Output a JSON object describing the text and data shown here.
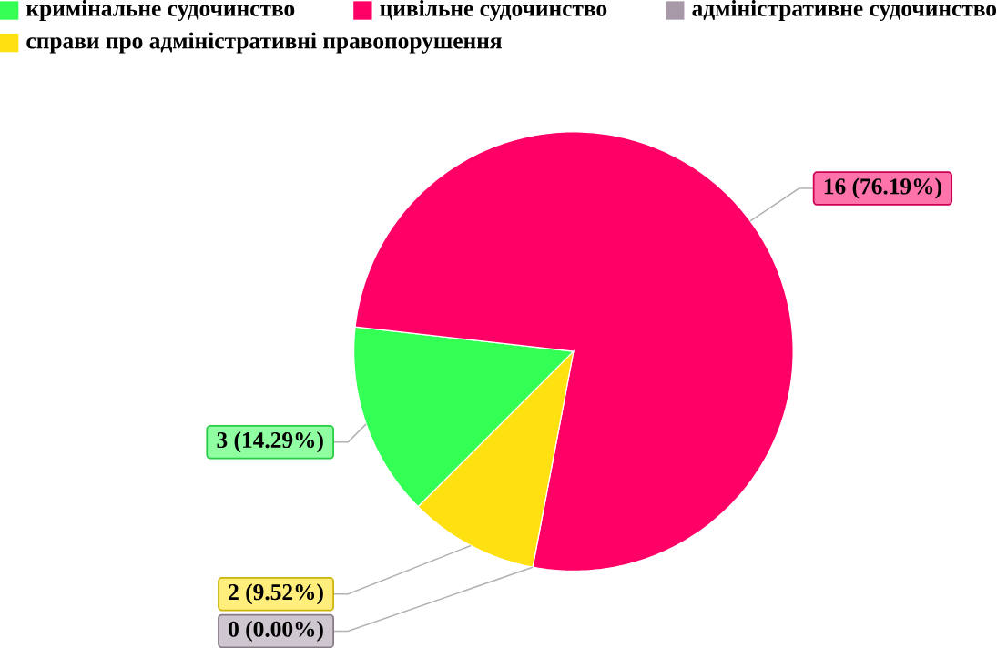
{
  "chart_data": {
    "type": "pie",
    "categories": [
      "кримінальне судочинство",
      "цивільне судочинство",
      "адміністративне судочинство",
      "справи про адміністративні правопорушення"
    ],
    "values": [
      3,
      16,
      0,
      2
    ],
    "colors": [
      "#33ff55",
      "#ff0066",
      "#a899a8",
      "#ffe010"
    ],
    "value_labels": [
      "3 (14.29%)",
      "16 (76.19%)",
      "0 (0.00%)",
      "2 (9.52%)"
    ],
    "legend": "top"
  }
}
